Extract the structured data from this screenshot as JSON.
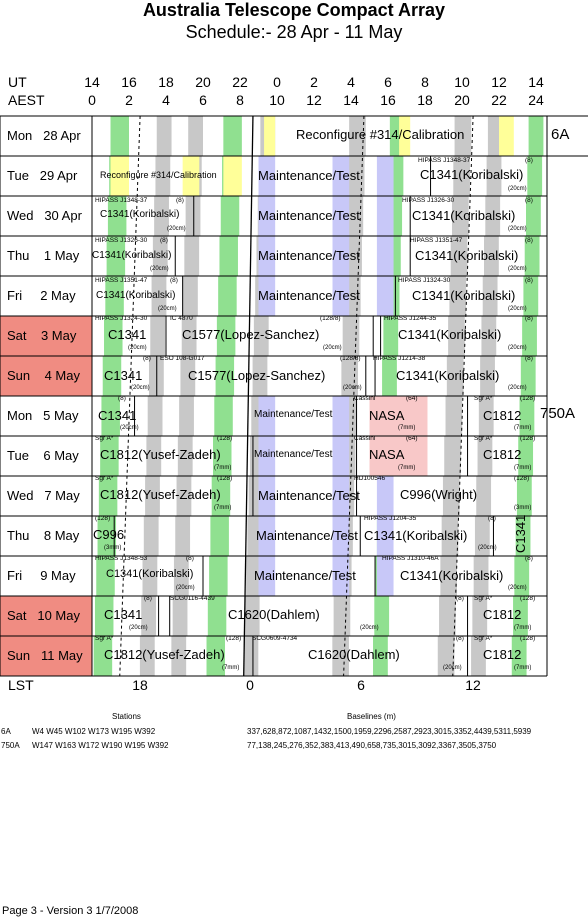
{
  "title": "Australia Telescope Compact Array",
  "subtitle": "Schedule:- 28 Apr - 11 May",
  "axis": {
    "ut_label": "UT",
    "aest_label": "AEST",
    "lst_label": "LST",
    "ut_ticks": [
      "14",
      "16",
      "18",
      "20",
      "22",
      "0",
      "2",
      "4",
      "6",
      "8",
      "10",
      "12",
      "14"
    ],
    "aest_ticks": [
      "0",
      "2",
      "4",
      "6",
      "8",
      "10",
      "12",
      "14",
      "16",
      "18",
      "20",
      "22",
      "24"
    ],
    "lst_ticks": [
      "18",
      "0",
      "6",
      "12"
    ]
  },
  "colors": {
    "green": "#90e090",
    "yellow": "#ffff99",
    "lavender": "#c8c8f8",
    "gray": "#c8c8c8",
    "weekend": "#f08c82",
    "nasa": "#f8c8c8"
  },
  "configs": [
    "6A",
    "750A"
  ],
  "days": [
    {
      "label": "Mon   28 Apr",
      "weekend": false
    },
    {
      "label": "Tue   29 Apr",
      "weekend": false
    },
    {
      "label": "Wed   30 Apr",
      "weekend": false
    },
    {
      "label": "Thu    1 May",
      "weekend": false
    },
    {
      "label": "Fri     2 May",
      "weekend": false
    },
    {
      "label": "Sat    3 May",
      "weekend": true
    },
    {
      "label": "Sun    4 May",
      "weekend": true
    },
    {
      "label": "Mon   5 May",
      "weekend": false
    },
    {
      "label": "Tue    6 May",
      "weekend": false
    },
    {
      "label": "Wed   7 May",
      "weekend": false
    },
    {
      "label": "Thu    8 May",
      "weekend": false
    },
    {
      "label": "Fri     9 May",
      "weekend": false
    },
    {
      "label": "Sat   10 May",
      "weekend": true
    },
    {
      "label": "Sun   11 May",
      "weekend": true
    }
  ],
  "texts": {
    "r0a": "Reconfigure #314/Calibration",
    "r1a": "Reconfigure #314/Calibration",
    "r1b": "Maintenance/Test",
    "r1c": "HIPASS J1348-37",
    "r1d": "(8)",
    "r1e": "C1341(Koribalski)",
    "r1f": "(20cm)",
    "r2a": "HIPASS J1348-37",
    "r2b": "(8)",
    "r2c": "C1341(Koribalski)",
    "r2d": "(20cm)",
    "r2e": "Maintenance/Test",
    "r2f": "HIPASS J1326-30",
    "r2g": "(8)",
    "r2h": "C1341(Koribalski)",
    "r2i": "(20cm)",
    "r3a": "HIPASS J1326-30",
    "r3b": "(8)",
    "r3c": "C1341(Koribalski)",
    "r3d": "(20cm)",
    "r3e": "Maintenance/Test",
    "r3f": "HIPASS J1351-47",
    "r3g": "(8)",
    "r3h": "C1341(Koribalski)",
    "r3i": "(20cm)",
    "r4a": "HIPASS J1351-47",
    "r4b": "(8)",
    "r4c": "C1341(Koribalski)",
    "r4d": "(20cm)",
    "r4e": "Maintenance/Test",
    "r4f": "HIPASS J1324-30",
    "r4g": "(8)",
    "r4h": "C1341(Koribalski)",
    "r4i": "(20cm)",
    "r5a": "HIPASS J1324-30",
    "r5b": "C1341",
    "r5c": "(20cm)",
    "r5d": "IC 4870",
    "r5e": "C1577(Lopez-Sanchez)",
    "r5f": "(128/8)",
    "r5g": "(20cm)",
    "r5h": "HIPASS J1244-35",
    "r5i": "(8)",
    "r5j": "C1341(Koribalski)",
    "r5k": "(20cm)",
    "r6a": "(8)",
    "r6b": "C1341",
    "r6c": "(20cm)",
    "r6d": "ESO 108-G017",
    "r6e": "C1577(Lopez-Sanchez)",
    "r6f": "(128/8)",
    "r6g": "(20cm)",
    "r6h": "HIPASS J1214-38",
    "r6i": "(8)",
    "r6j": "C1341(Koribalski)",
    "r6k": "(20cm)",
    "r7a": "(8)",
    "r7b": "C1341",
    "r7c": "(20cm)",
    "r7d": "Maintenance/Test",
    "r7e": "Cassini",
    "r7f": "(64)",
    "r7g": "NASA",
    "r7h": "(7mm)",
    "r7i": "Sgr A*",
    "r7j": "(128)",
    "r7k": "C1812",
    "r7l": "(7mm)",
    "r8a": "Sgr A*",
    "r8b": "(128)",
    "r8c": "C1812(Yusef-Zadeh)",
    "r8d": "(7mm)",
    "r8e": "Maintenance/Test",
    "r8f": "Cassini",
    "r8g": "(64)",
    "r8h": "NASA",
    "r8i": "(7mm)",
    "r8j": "Sgr A*",
    "r8k": "(128)",
    "r8l": "C1812",
    "r8m": "(7mm)",
    "r9a": "Sgr A*",
    "r9b": "(128)",
    "r9c": "C1812(Yusef-Zadeh)",
    "r9d": "(7mm)",
    "r9e": "Maintenance/Test",
    "r9f": "HD100546",
    "r9g": "C996(Wright)",
    "r9h": "(128)",
    "r9i": "(3mm)",
    "r10a": "(128)",
    "r10b": "C996",
    "r10c": "(3mm)",
    "r10d": "Maintenance/Test",
    "r10e": "HIPASS J1204-35",
    "r10f": "(8)",
    "r10g": "C1341(Koribalski)",
    "r10h": "(20cm)",
    "r10i": "C1341",
    "r11a": "HIPASS J1348-53",
    "r11b": "(8)",
    "r11c": "C1341(Koribalski)",
    "r11d": "(20cm)",
    "r11e": "Maintenance/Test",
    "r11f": "HIPASS J1310-46A",
    "r11g": "(8)",
    "r11h": "C1341(Koribalski)",
    "r11i": "(20cm)",
    "r12a": "(8)",
    "r12b": "C1341",
    "r12c": "(20cm)",
    "r12d": "SCG0116-4439",
    "r12e": "C1620(Dahlem)",
    "r12f": "(20cm)",
    "r12g": "(8)",
    "r12h": "Sgr A*",
    "r12i": "(128)",
    "r12j": "C1812",
    "r12k": "(7mm)",
    "r13a": "Sgr A*",
    "r13b": "C1812(Yusef-Zadeh)",
    "r13c": "(128)",
    "r13d": "(7mm)",
    "r13e": "SCG0609-4734",
    "r13f": "C1620(Dahlem)",
    "r13g": "(8)",
    "r13h": "(20cm)",
    "r13i": "Sgr A*",
    "r13j": "(128)",
    "r13k": "C1812",
    "r13l": "(7mm)"
  },
  "legend": {
    "stations_header": "Stations",
    "baselines_header": "Baselines (m)",
    "rows": [
      {
        "config": "6A",
        "stations": "W4 W45 W102 W173 W195 W392",
        "baselines": "337,628,872,1087,1432,1500,1959,2296,2587,2923,3015,3352,4439,5311,5939"
      },
      {
        "config": "750A",
        "stations": "W147 W163 W172 W190 W195 W392",
        "baselines": "77,138,245,276,352,383,413,490,658,735,3015,3092,3367,3505,3750"
      }
    ]
  },
  "footer": "Page 3 - Version 3  1/7/2008"
}
